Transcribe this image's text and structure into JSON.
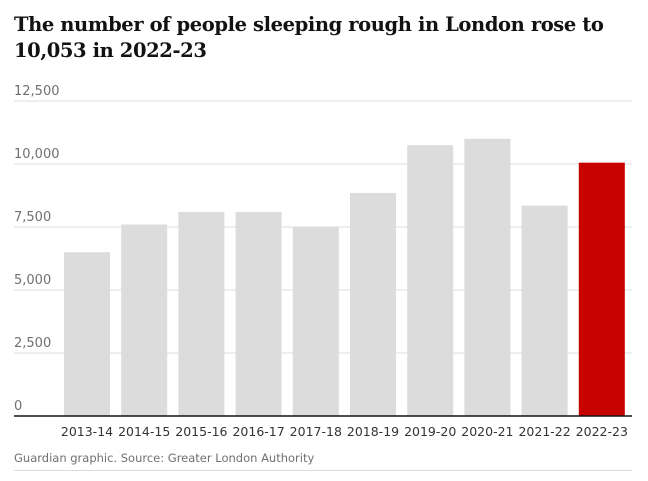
{
  "title": "The number of people sleeping rough in London rose to 10,053 in 2022-23",
  "source": "Guardian graphic. Source: Greater London Authority",
  "colors": {
    "bar": "#dcdcdc",
    "highlight": "#c70000",
    "grid": "#dcdcdc",
    "baseline": "#121212"
  },
  "chart_data": {
    "type": "bar",
    "title": "The number of people sleeping rough in London rose to 10,053 in 2022-23",
    "xlabel": "",
    "ylabel": "",
    "ylim": [
      0,
      12500
    ],
    "yticks": [
      0,
      2500,
      5000,
      7500,
      10000,
      12500
    ],
    "ytick_labels": [
      "0",
      "2,500",
      "5,000",
      "7,500",
      "10,000",
      "12,500"
    ],
    "grid": true,
    "categories": [
      "2013-14",
      "2014-15",
      "2015-16",
      "2016-17",
      "2017-18",
      "2018-19",
      "2019-20",
      "2020-21",
      "2021-22",
      "2022-23"
    ],
    "values": [
      6500,
      7600,
      8100,
      8100,
      7500,
      8850,
      10750,
      11000,
      8350,
      10053
    ],
    "highlight_index": 9
  }
}
